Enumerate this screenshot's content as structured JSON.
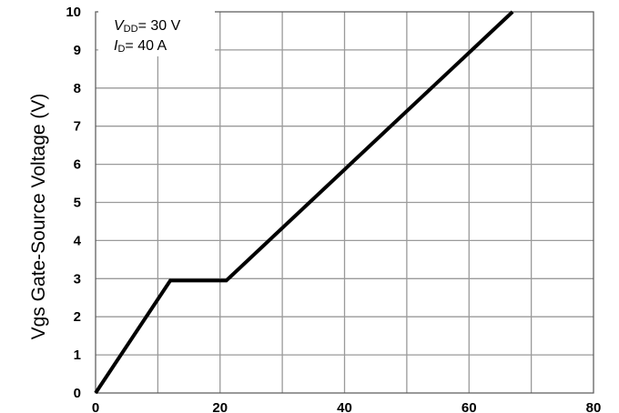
{
  "chart_data": {
    "type": "line",
    "title": "",
    "xlabel": "",
    "ylabel": "Vgs Gate-Source Voltage (V)",
    "xlim": [
      0,
      80
    ],
    "ylim": [
      0,
      10
    ],
    "x_ticks": [
      "0",
      "20",
      "40",
      "60",
      "80"
    ],
    "y_ticks": [
      "0",
      "1",
      "2",
      "3",
      "4",
      "5",
      "6",
      "7",
      "8",
      "9",
      "10"
    ],
    "grid": true,
    "series": [
      {
        "x": [
          0,
          12,
          21,
          67
        ],
        "y": [
          0,
          2.95,
          2.95,
          10
        ],
        "color": "#000000"
      }
    ],
    "annotations": {
      "vdd": {
        "symbol": "V",
        "subscript": "DD",
        "value": "= 30 V"
      },
      "id": {
        "symbol": "I",
        "subscript": "D",
        "value": "= 40 A"
      }
    }
  }
}
